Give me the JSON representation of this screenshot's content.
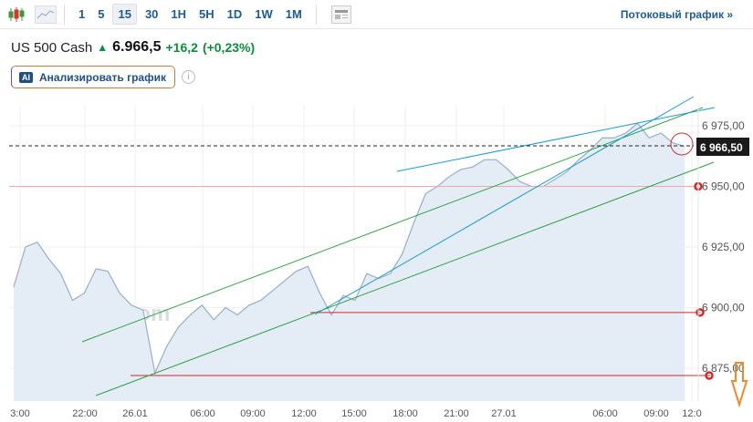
{
  "toolbar": {
    "chart_type_icons": [
      "candlestick-icon",
      "area-chart-icon"
    ],
    "timeframes": [
      "1",
      "5",
      "15",
      "30",
      "1H",
      "5H",
      "1D",
      "1W",
      "1M"
    ],
    "active_timeframe": "15",
    "layout_icon": "layout-icon",
    "stream_link": "Потоковый график »"
  },
  "quote": {
    "name": "US 500 Cash",
    "direction": "up",
    "price": "6.966,5",
    "change": "+16,2",
    "change_pct": "(+0,23%)"
  },
  "ai_button": {
    "badge": "AI",
    "label": "Анализировать график"
  },
  "info_icon": "i",
  "watermark": "Investing.com",
  "chart_data": {
    "type": "area",
    "y_ticks": [
      "6 975,00",
      "6 950,00",
      "6 925,00",
      "6 900,00",
      "6 875,00"
    ],
    "x_ticks": [
      "3:00",
      "22:00",
      "26.01",
      "06:00",
      "09:00",
      "12:00",
      "15:00",
      "18:00",
      "21:00",
      "27.01",
      "06:00",
      "09:00",
      "12:0"
    ],
    "current_price_label": "6 966,50",
    "current_price": 6966.5,
    "ylim": [
      6866,
      6990
    ],
    "grid": true,
    "values": [
      6908.5,
      6925,
      6927,
      6920,
      6914,
      6903,
      6906,
      6916,
      6915,
      6906,
      6901,
      6899,
      6873,
      6884,
      6892,
      6897,
      6901,
      6895,
      6900,
      6897,
      6901,
      6903,
      6907,
      6911,
      6915,
      6917,
      6906,
      6897,
      6905,
      6903,
      6914,
      6912,
      6914,
      6922,
      6935,
      6947,
      6950,
      6954,
      6957,
      6958,
      6961,
      6961,
      6957,
      6952,
      6950,
      6950,
      6953,
      6956,
      6961,
      6965,
      6970,
      6970,
      6972,
      6976,
      6970,
      6972,
      6968,
      6966.5
    ],
    "horizontal_levels": [
      6950,
      6898,
      6872
    ],
    "colors": {
      "line": "#9fb3c8",
      "fill": "#e4edf5",
      "level": "#d62828",
      "level_light": "#f4a6a6",
      "channel": "#2ea043",
      "trend": "#1a9bd7",
      "arrow": "#f08a24"
    }
  }
}
